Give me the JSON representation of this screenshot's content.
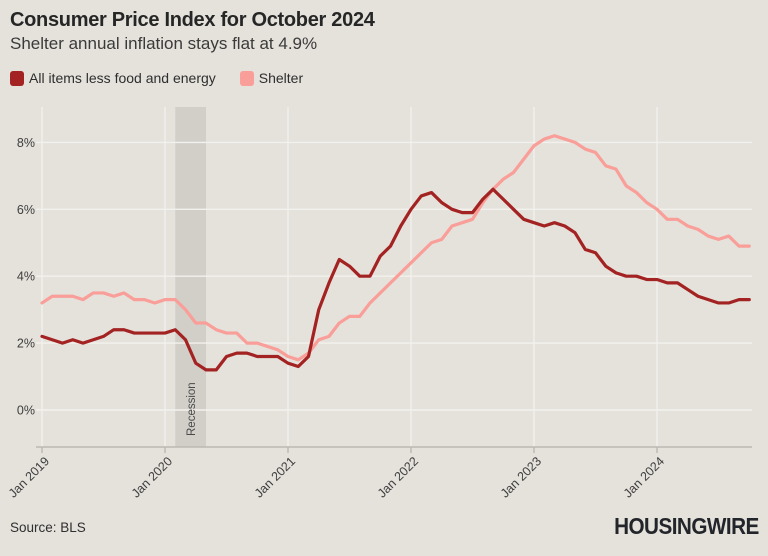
{
  "header": {
    "title": "Consumer Price Index for October 2024",
    "subtitle": "Shelter annual inflation stays flat at 4.9%"
  },
  "legend": [
    {
      "label": "All items less food and energy",
      "color": "#a32222"
    },
    {
      "label": "Shelter",
      "color": "#f99e98"
    }
  ],
  "chart_data": {
    "type": "line",
    "title": "Consumer Price Index for October 2024",
    "subtitle": "Shelter annual inflation stays flat at 4.9%",
    "x_frequency": "monthly",
    "x_start": "Jan 2019",
    "x_end": "Oct 2024",
    "x_tick_labels": [
      "Jan 2019",
      "Jan 2020",
      "Jan 2021",
      "Jan 2022",
      "Jan 2023",
      "Jan 2024"
    ],
    "y_tick_labels": [
      "0%",
      "2%",
      "4%",
      "6%",
      "8%"
    ],
    "y_ticks": [
      0,
      2,
      4,
      6,
      8
    ],
    "ylim": [
      -1.1,
      9.1
    ],
    "grid": true,
    "legend_position": "top-left",
    "annotations": [
      {
        "type": "band",
        "label": "Recession",
        "x_start_month_index": 13,
        "x_end_month_index": 16
      }
    ],
    "series": [
      {
        "name": "All items less food and energy",
        "color": "#a32222",
        "values": [
          2.2,
          2.1,
          2.0,
          2.1,
          2.0,
          2.1,
          2.2,
          2.4,
          2.4,
          2.3,
          2.3,
          2.3,
          2.3,
          2.4,
          2.1,
          1.4,
          1.2,
          1.2,
          1.6,
          1.7,
          1.7,
          1.6,
          1.6,
          1.6,
          1.4,
          1.3,
          1.6,
          3.0,
          3.8,
          4.5,
          4.3,
          4.0,
          4.0,
          4.6,
          4.9,
          5.5,
          6.0,
          6.4,
          6.5,
          6.2,
          6.0,
          5.9,
          5.9,
          6.3,
          6.6,
          6.3,
          6.0,
          5.7,
          5.6,
          5.5,
          5.6,
          5.5,
          5.3,
          4.8,
          4.7,
          4.3,
          4.1,
          4.0,
          4.0,
          3.9,
          3.9,
          3.8,
          3.8,
          3.6,
          3.4,
          3.3,
          3.2,
          3.2,
          3.3,
          3.3
        ]
      },
      {
        "name": "Shelter",
        "color": "#f99e98",
        "values": [
          3.2,
          3.4,
          3.4,
          3.4,
          3.3,
          3.5,
          3.5,
          3.4,
          3.5,
          3.3,
          3.3,
          3.2,
          3.3,
          3.3,
          3.0,
          2.6,
          2.6,
          2.4,
          2.3,
          2.3,
          2.0,
          2.0,
          1.9,
          1.8,
          1.6,
          1.5,
          1.7,
          2.1,
          2.2,
          2.6,
          2.8,
          2.8,
          3.2,
          3.5,
          3.8,
          4.1,
          4.4,
          4.7,
          5.0,
          5.1,
          5.5,
          5.6,
          5.7,
          6.2,
          6.6,
          6.9,
          7.1,
          7.5,
          7.9,
          8.1,
          8.2,
          8.1,
          8.0,
          7.8,
          7.7,
          7.3,
          7.2,
          6.7,
          6.5,
          6.2,
          6.0,
          5.7,
          5.7,
          5.5,
          5.4,
          5.2,
          5.1,
          5.2,
          4.9,
          4.9
        ]
      }
    ],
    "colors": {
      "background": "#e5e2dc",
      "recession_band": "#d2cfc9",
      "gridline": "#f3f1ed",
      "axis": "#bbb8b2",
      "tick_text": "#3e3e3e",
      "annotation_text": "#4a4a4a"
    }
  },
  "footer": {
    "source": "Source: BLS",
    "brand": "HOUSINGWIRE"
  }
}
